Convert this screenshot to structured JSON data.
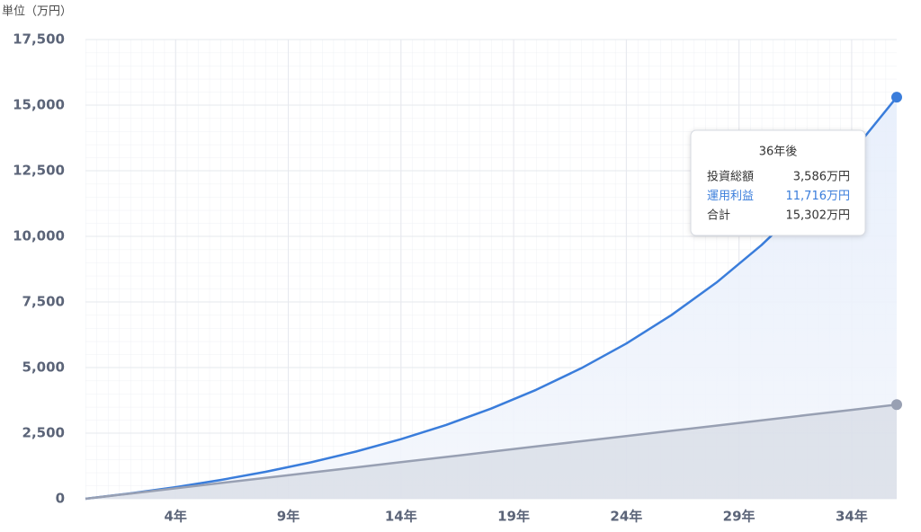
{
  "chart_data": {
    "type": "area",
    "unit_label": "単位（万円）",
    "x": [
      0,
      2,
      4,
      6,
      8,
      10,
      12,
      14,
      16,
      18,
      20,
      22,
      24,
      26,
      28,
      30,
      32,
      34,
      36
    ],
    "xlim": [
      0,
      36
    ],
    "xticks": [
      {
        "value": 4,
        "label": "4年"
      },
      {
        "value": 9,
        "label": "9年"
      },
      {
        "value": 14,
        "label": "14年"
      },
      {
        "value": 19,
        "label": "19年"
      },
      {
        "value": 24,
        "label": "24年"
      },
      {
        "value": 29,
        "label": "29年"
      },
      {
        "value": 34,
        "label": "34年"
      }
    ],
    "ylim": [
      0,
      17500
    ],
    "yticks": [
      0,
      {
        "value": 2500,
        "label": "2,500"
      },
      {
        "value": 5000,
        "label": "5,000"
      },
      {
        "value": 7500,
        "label": "7,500"
      },
      {
        "value": 10000,
        "label": "10,000"
      },
      {
        "value": 12500,
        "label": "12,500"
      },
      {
        "value": 15000,
        "label": "15,000"
      },
      {
        "value": 17500,
        "label": "17,500"
      }
    ],
    "grid": true,
    "series": [
      {
        "name": "合計",
        "color": "#3a7ddb",
        "values": [
          0,
          206,
          443,
          715,
          1027,
          1386,
          1797,
          2270,
          2813,
          3436,
          4151,
          4972,
          5915,
          6998,
          8240,
          9667,
          11305,
          13186,
          15302
        ]
      },
      {
        "name": "投資総額",
        "color": "#98a0b3",
        "values": [
          0,
          199,
          398,
          598,
          797,
          996,
          1195,
          1394,
          1594,
          1793,
          1992,
          2191,
          2391,
          2590,
          2789,
          2988,
          3187,
          3387,
          3586
        ]
      }
    ],
    "tooltip": {
      "title": "36年後",
      "rows": [
        {
          "label": "投資総額",
          "value": "3,586万円",
          "color": "#333333"
        },
        {
          "label": "運用利益",
          "value": "11,716万円",
          "color": "#3a7ddb"
        },
        {
          "label": "合計",
          "value": "15,302万円",
          "color": "#333333"
        }
      ]
    }
  }
}
